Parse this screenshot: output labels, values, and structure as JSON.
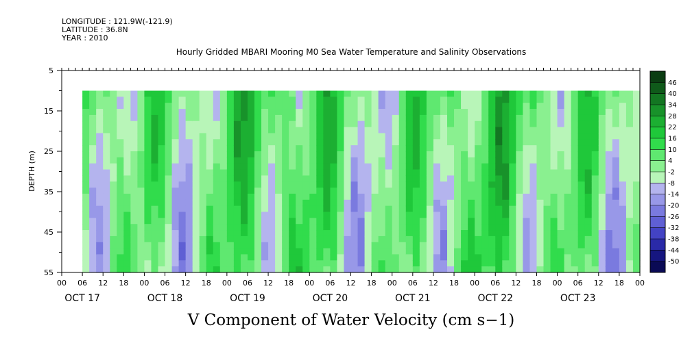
{
  "header": {
    "longitude": "LONGITUDE : 121.9W(-121.9)",
    "latitude": "LATITUDE : 36.8N",
    "year": "YEAR : 2010",
    "title": "Hourly Gridded MBARI Mooring M0 Sea Water Temperature and Salinity Observations"
  },
  "footer": {
    "title": "V Component of Water Velocity (cm s−1)"
  },
  "chart_data": {
    "type": "heatmap",
    "title": "Hourly Gridded MBARI Mooring M0 Sea Water Temperature and Salinity Observations",
    "variable": "V Component of Water Velocity (cm s−1)",
    "ylabel": "DEPTH (m)",
    "y_reversed": true,
    "ylim": [
      55,
      5
    ],
    "y_ticks": [
      5,
      15,
      25,
      35,
      45,
      55
    ],
    "x_hour_ticks": [
      "00",
      "06",
      "12",
      "18",
      "00",
      "06",
      "12",
      "18",
      "00",
      "06",
      "12",
      "18",
      "00",
      "06",
      "12",
      "18",
      "00",
      "06",
      "12",
      "18",
      "00",
      "06",
      "12",
      "18",
      "00",
      "06",
      "12",
      "18",
      "00"
    ],
    "x_day_labels": [
      "OCT 17",
      "OCT 18",
      "OCT 19",
      "OCT 20",
      "OCT 21",
      "OCT 22",
      "OCT 23"
    ],
    "data_extent": {
      "start": "OCT 17 06:00",
      "end": "OCT 24 00:00",
      "depth_top": 10,
      "depth_bottom": 55
    },
    "colorbar": {
      "levels": [
        "46",
        "40",
        "34",
        "28",
        "22",
        "16",
        "10",
        "4",
        "-2",
        "-8",
        "-14",
        "-20",
        "-26",
        "-32",
        "-38",
        "-44",
        "-50"
      ],
      "colors": [
        "#0b3d12",
        "#0f5a1a",
        "#137622",
        "#18922a",
        "#1caf32",
        "#1fc83a",
        "#31dc4c",
        "#5fe870",
        "#8af090",
        "#b8f5b8",
        "#b4b4ee",
        "#9898e8",
        "#7a7adf",
        "#5f5fd4",
        "#4343c4",
        "#2a2aa8",
        "#161680",
        "#0a0a55"
      ]
    },
    "note": "Field values alternate between positive (green) and negative (blue) bands over time; dominant range approx -20 to +20 cm/s."
  }
}
